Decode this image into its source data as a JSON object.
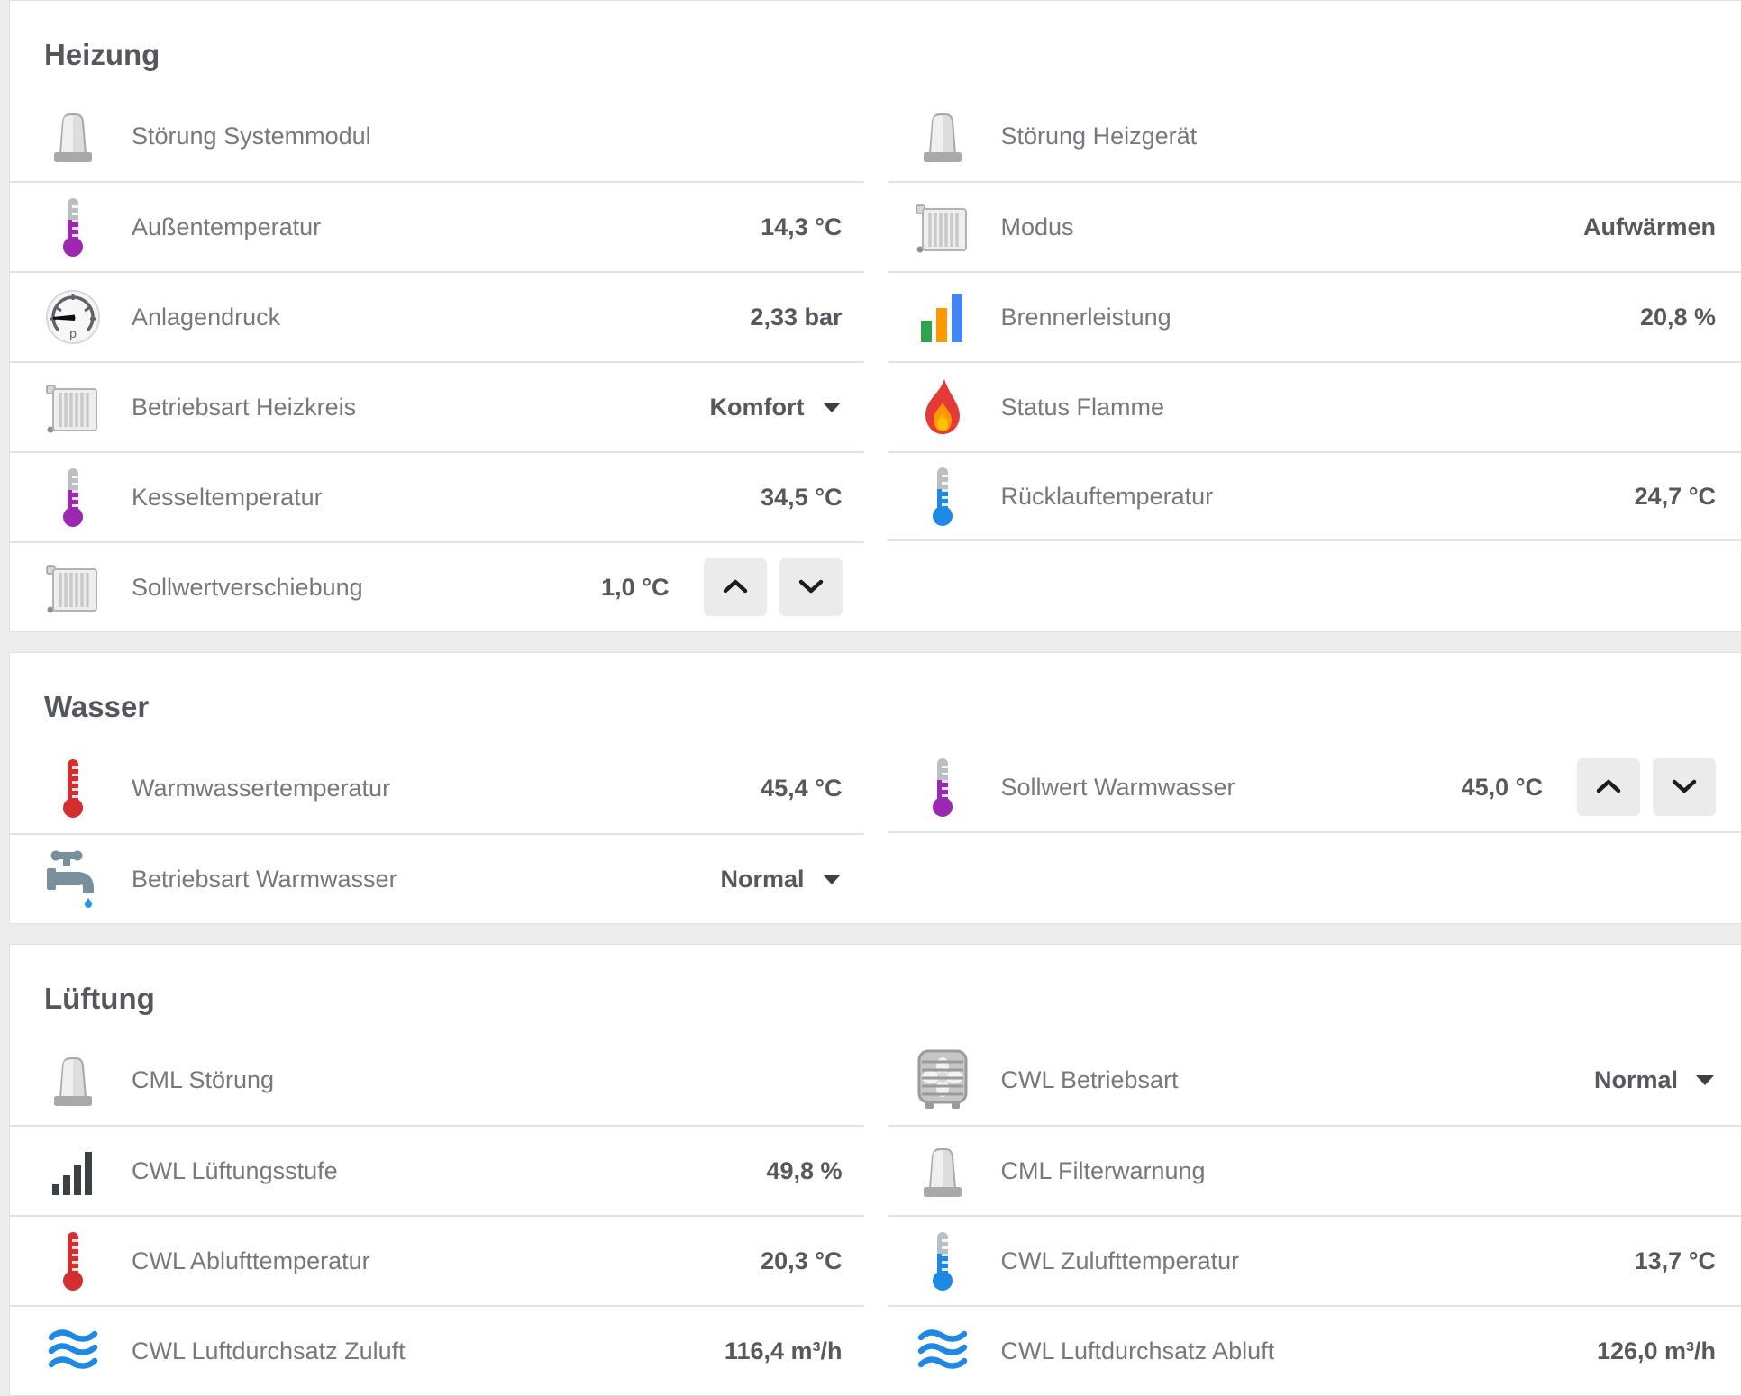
{
  "page": {
    "background": "#ececec",
    "card_background": "#ffffff",
    "label_color": "#75787c",
    "value_color": "#55585c",
    "divider_color": "#e3e3e3"
  },
  "colors": {
    "thermometer_gray_top": "#b9bfc3",
    "thermometer_purple": "#9c27b0",
    "thermometer_red": "#d32f2f",
    "thermometer_blue": "#1e88e5",
    "wave_blue": "#1e88e5",
    "bar_green": "#2ea44f",
    "bar_orange": "#ff9800",
    "bar_blue": "#4285f4",
    "drop_blue": "#2196f3",
    "flame_red": "#e53935",
    "flame_orange": "#ff9800",
    "flame_yellow": "#ffc107",
    "siren_gray": "#d6d6d6",
    "chart_bars_dark": "#3c4043"
  },
  "sections": [
    {
      "title": "Heizung",
      "left": [
        {
          "icon": "siren-icon",
          "label": "Störung Systemmodul",
          "value": ""
        },
        {
          "icon": "thermometer-icon",
          "variant": "purple",
          "label": "Außentemperatur",
          "value": "14,3 °C"
        },
        {
          "icon": "gauge-icon",
          "label": "Anlagendruck",
          "value": "2,33 bar"
        },
        {
          "icon": "radiator-icon",
          "label": "Betriebsart Heizkreis",
          "value": "Komfort",
          "control": "dropdown"
        },
        {
          "icon": "thermometer-icon",
          "variant": "purple",
          "label": "Kesseltemperatur",
          "value": "34,5 °C"
        },
        {
          "icon": "radiator-icon",
          "label": "Sollwertverschiebung",
          "value": "1,0 °C",
          "control": "stepper"
        }
      ],
      "right": [
        {
          "icon": "siren-icon",
          "label": "Störung Heizgerät",
          "value": ""
        },
        {
          "icon": "radiator-icon",
          "label": "Modus",
          "value": "Aufwärmen"
        },
        {
          "icon": "bar-chart-icon",
          "label": "Brennerleistung",
          "value": "20,8 %"
        },
        {
          "icon": "flame-icon",
          "label": "Status Flamme",
          "value": ""
        },
        {
          "icon": "thermometer-icon",
          "variant": "blue",
          "label": "Rücklauftemperatur",
          "value": "24,7 °C"
        }
      ],
      "right_trailing_divider": true
    },
    {
      "title": "Wasser",
      "left": [
        {
          "icon": "thermometer-icon",
          "variant": "red",
          "label": "Warmwassertemperatur",
          "value": "45,4 °C"
        },
        {
          "icon": "faucet-icon",
          "label": "Betriebsart Warmwasser",
          "value": "Normal",
          "control": "dropdown"
        }
      ],
      "right": [
        {
          "icon": "thermometer-icon",
          "variant": "purple",
          "label": "Sollwert Warmwasser",
          "value": "45,0 °C",
          "control": "stepper"
        }
      ],
      "right_trailing_divider": true
    },
    {
      "title": "Lüftung",
      "left": [
        {
          "icon": "siren-icon",
          "label": "CML Störung",
          "value": ""
        },
        {
          "icon": "signal-bars-icon",
          "label": "CWL Lüftungsstufe",
          "value": "49,8 %"
        },
        {
          "icon": "thermometer-icon",
          "variant": "red",
          "label": "CWL Ablufttemperatur",
          "value": "20,3 °C"
        },
        {
          "icon": "waves-icon",
          "label": "CWL Luftdurchsatz Zuluft",
          "value": "116,4 m³/h"
        }
      ],
      "right": [
        {
          "icon": "fan-icon",
          "label": "CWL Betriebsart",
          "value": "Normal",
          "control": "dropdown"
        },
        {
          "icon": "siren-icon",
          "label": "CML Filterwarnung",
          "value": ""
        },
        {
          "icon": "thermometer-icon",
          "variant": "blue",
          "label": "CWL Zulufttemperatur",
          "value": "13,7 °C"
        },
        {
          "icon": "waves-icon",
          "label": "CWL Luftdurchsatz Abluft",
          "value": "126,0 m³/h"
        }
      ],
      "right_trailing_divider": false
    }
  ]
}
